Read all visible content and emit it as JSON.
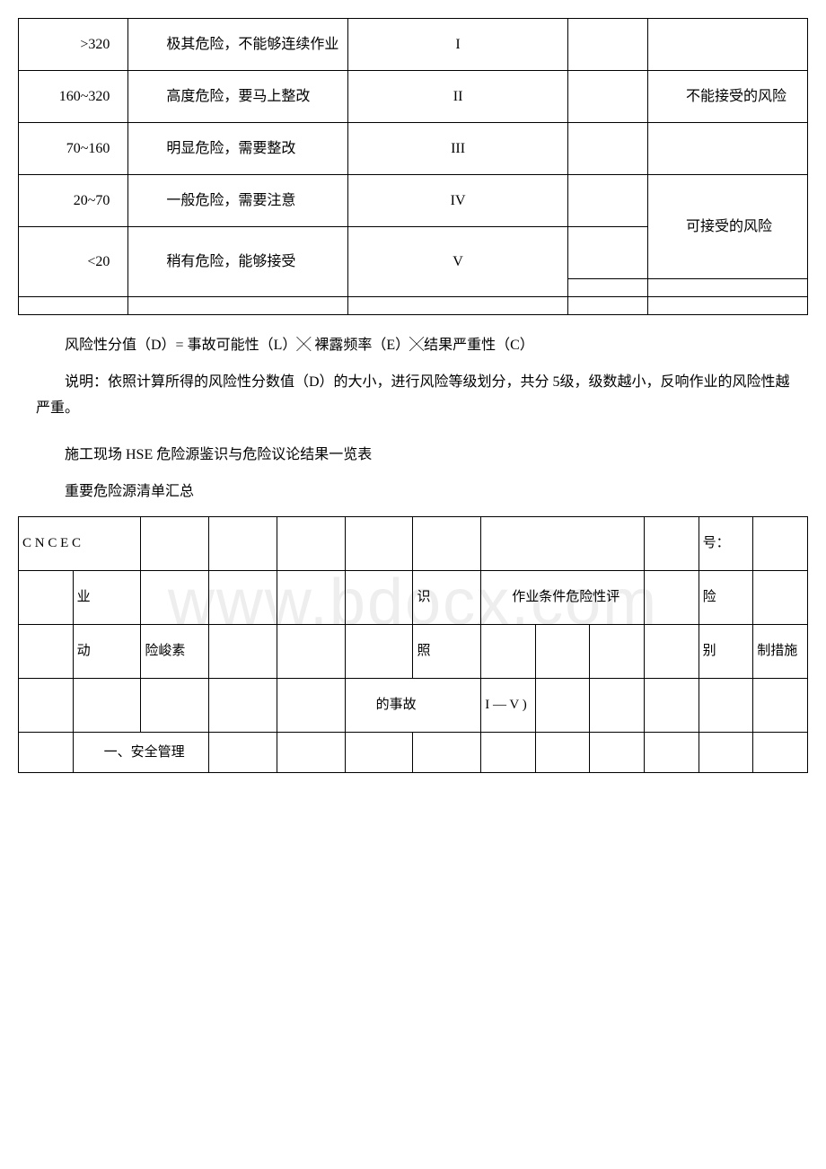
{
  "table1": {
    "rows": [
      {
        "range": ">320",
        "desc": "极其危险，不能够连续作业",
        "level": "I",
        "risk": ""
      },
      {
        "range": "160~320",
        "desc": "高度危险，要马上整改",
        "level": "II",
        "risk": "不能接受的风险"
      },
      {
        "range": "70~160",
        "desc": "明显危险，需要整改",
        "level": "III",
        "risk": ""
      },
      {
        "range": "20~70",
        "desc": "一般危险，需要注意",
        "level": "IV",
        "risk": "可接受的风险"
      },
      {
        "range": "<20",
        "desc": "稍有危险，能够接受",
        "level": "V",
        "risk": ""
      }
    ]
  },
  "paragraphs": {
    "formula": "风险性分值（D）= 事故可能性（L）╳ 裸露频率（E）╳结果严重性（C）",
    "note": "说明：依照计算所得的风险性分数值（D）的大小，进行风险等级划分，共分 5级，级数越小，反响作业的风险性越严重。",
    "heading1": "施工现场 HSE 危险源鉴识与危险议论结果一览表",
    "heading2": "重要危险源清单汇总"
  },
  "table2": {
    "header": {
      "cnec": "C N C E C",
      "no_label": "号：",
      "ye": "业",
      "shi": "识",
      "cond": "作业条件危险性评",
      "xian": "险",
      "dong": "动",
      "factor": "险峻素",
      "zhao": "照",
      "bie": "别",
      "measure": "制措施",
      "accident": "的事故",
      "iv": "I — V )"
    },
    "section1": "一、安全管理"
  },
  "watermark": "www.bdocx.com",
  "colors": {
    "border": "#000000",
    "background": "#ffffff",
    "watermark": "#eeeeee",
    "text": "#000000"
  }
}
